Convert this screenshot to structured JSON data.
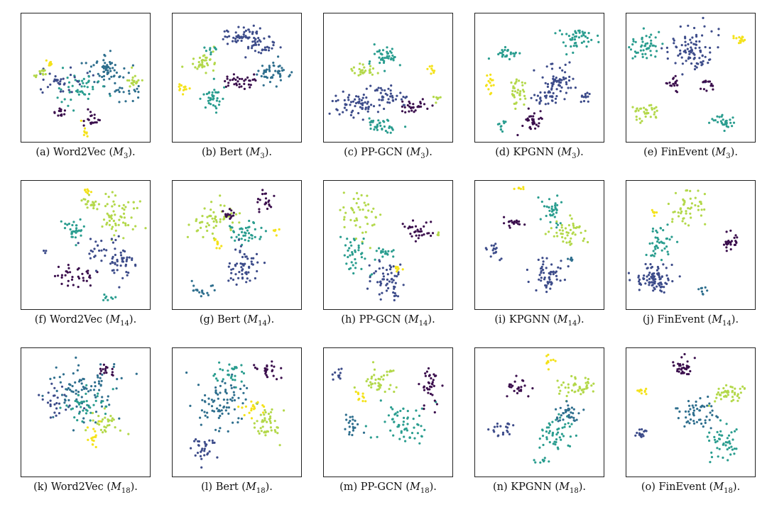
{
  "chart_data": {
    "type": "scatter",
    "palette": {
      "dark_purple": "#3b0f4d",
      "navy": "#3d4c8a",
      "steel_blue": "#2f6f8e",
      "teal": "#2a9d8f",
      "yellow_green": "#b3d84a",
      "yellow": "#f4e21a"
    },
    "panels": [
      {
        "label": "(a)",
        "method": "Word2Vec",
        "subscript": "3",
        "suffix": ")."
      },
      {
        "label": "(b)",
        "method": "Bert",
        "subscript": "3",
        "suffix": ")."
      },
      {
        "label": "(c)",
        "method": "PP-GCN",
        "subscript": "3",
        "suffix": ")."
      },
      {
        "label": "(d)",
        "method": "KPGNN",
        "subscript": "3",
        "suffix": ")."
      },
      {
        "label": "(e)",
        "method": "FinEvent",
        "subscript": "3",
        "suffix": ")."
      },
      {
        "label": "(f)",
        "method": "Word2Vec",
        "subscript": "14",
        "suffix": ")."
      },
      {
        "label": "(g)",
        "method": "Bert",
        "subscript": "14",
        "suffix": ")."
      },
      {
        "label": "(h)",
        "method": "PP-GCN",
        "subscript": "14",
        "suffix": ")."
      },
      {
        "label": "(i)",
        "method": "KPGNN",
        "subscript": "14",
        "suffix": ")."
      },
      {
        "label": "(j)",
        "method": "FinEvent",
        "subscript": "14",
        "suffix": ")."
      },
      {
        "label": "(k)",
        "method": "Word2Vec",
        "subscript": "18",
        "suffix": ")."
      },
      {
        "label": "(l)",
        "method": "Bert",
        "subscript": "18",
        "suffix": ")."
      },
      {
        "label": "(m)",
        "method": "PP-GCN",
        "subscript": "18",
        "suffix": ")."
      },
      {
        "label": "(n)",
        "method": "KPGNN",
        "subscript": "18",
        "suffix": ")."
      },
      {
        "label": "(o)",
        "method": "FinEvent",
        "subscript": "18",
        "suffix": ")."
      }
    ]
  }
}
